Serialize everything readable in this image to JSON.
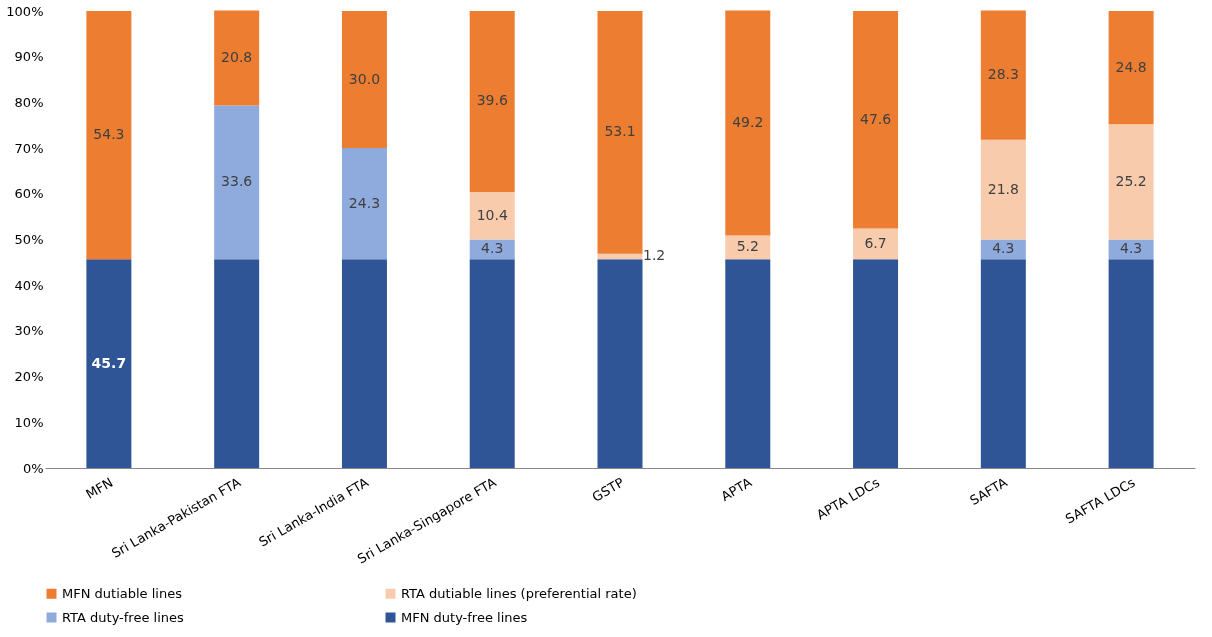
{
  "chart_data": {
    "type": "bar",
    "stacked": true,
    "categories": [
      "MFN",
      "Sri Lanka-Pakistan FTA",
      "Sri Lanka-India FTA",
      "Sri Lanka-Singapore FTA",
      "GSTP",
      "APTA",
      "APTA LDCs",
      "SAFTA",
      "SAFTA LDCs"
    ],
    "series": [
      {
        "name": "MFN duty-free lines",
        "color": "#2f5597",
        "values": [
          45.7,
          45.7,
          45.7,
          45.7,
          45.7,
          45.7,
          45.7,
          45.7,
          45.7
        ],
        "value_labels": [
          "45.7",
          null,
          null,
          null,
          null,
          null,
          null,
          null,
          null
        ]
      },
      {
        "name": "RTA duty-free lines",
        "color": "#8faadc",
        "values": [
          0,
          33.6,
          24.3,
          4.3,
          0,
          0,
          0,
          4.3,
          4.3
        ],
        "value_labels": [
          null,
          "33.6",
          "24.3",
          "4.3",
          null,
          null,
          null,
          "4.3",
          "4.3"
        ]
      },
      {
        "name": "RTA dutiable lines (preferential rate)",
        "color": "#f8cbad",
        "values": [
          0,
          0,
          0,
          10.4,
          1.2,
          5.2,
          6.7,
          21.8,
          25.2
        ],
        "value_labels": [
          null,
          null,
          null,
          "10.4",
          "1.2",
          "5.2",
          "6.7",
          "21.8",
          "25.2"
        ]
      },
      {
        "name": "MFN dutiable lines",
        "color": "#ed7d31",
        "values": [
          54.3,
          20.8,
          30.0,
          39.6,
          53.1,
          49.2,
          47.6,
          28.3,
          24.8
        ],
        "value_labels": [
          "54.3",
          "20.8",
          "30.0",
          "39.6",
          "53.1",
          "49.2",
          "47.6",
          "28.3",
          "24.8"
        ]
      }
    ],
    "ylim": [
      0,
      100
    ],
    "yticks": [
      {
        "value": 0,
        "label": "0%"
      },
      {
        "value": 10,
        "label": "10%"
      },
      {
        "value": 20,
        "label": "20%"
      },
      {
        "value": 30,
        "label": "30%"
      },
      {
        "value": 40,
        "label": "40%"
      },
      {
        "value": 50,
        "label": "50%"
      },
      {
        "value": 60,
        "label": "60%"
      },
      {
        "value": 70,
        "label": "70%"
      },
      {
        "value": 80,
        "label": "80%"
      },
      {
        "value": 90,
        "label": "90%"
      },
      {
        "value": 100,
        "label": "100%"
      }
    ],
    "grid": false,
    "legend": "bottom"
  }
}
